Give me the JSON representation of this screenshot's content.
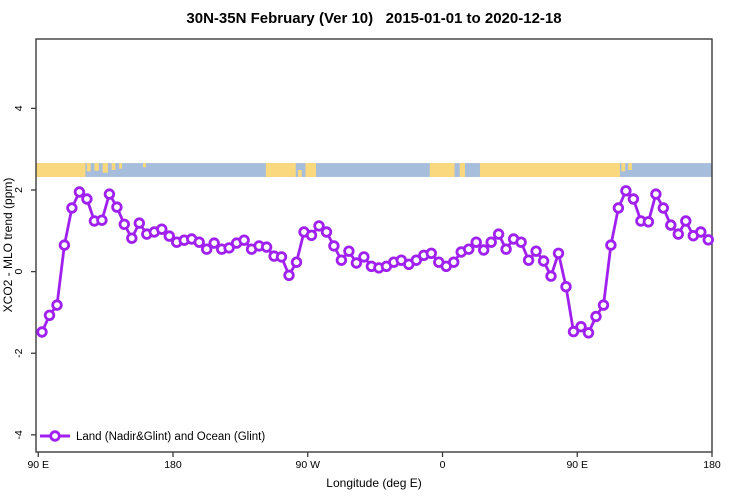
{
  "chart_data": {
    "type": "line",
    "title": "30N-35N February (Ver 10)   2015-01-01 to 2020-12-18",
    "xlabel": "Longitude (deg E)",
    "ylabel": "XCO2 - MLO trend (ppm)",
    "legend_label": "Land (Nadir&Glint) and Ocean (Glint)",
    "legend_position": "bottom-left",
    "grid": false,
    "xlim": [
      88.5,
      540
    ],
    "ylim": [
      -4.42,
      5.7
    ],
    "x_ticks": [
      {
        "lon": 90,
        "label": "90 E"
      },
      {
        "lon": 180,
        "label": "180"
      },
      {
        "lon": 270,
        "label": "90 W"
      },
      {
        "lon": 360,
        "label": "0"
      },
      {
        "lon": 450,
        "label": "90 E"
      },
      {
        "lon": 540,
        "label": "180"
      }
    ],
    "y_ticks": [
      {
        "value": -4,
        "label": "-4"
      },
      {
        "value": -2,
        "label": "-2"
      },
      {
        "value": 0,
        "label": "0"
      },
      {
        "value": 2,
        "label": "2"
      },
      {
        "value": 4,
        "label": "4"
      }
    ],
    "series": [
      {
        "name": "Land (Nadir&Glint) and Ocean (Glint)",
        "color": "#A020F0",
        "marker": "open-circle",
        "points": [
          [
            92.5,
            -1.48
          ],
          [
            97.5,
            -1.07
          ],
          [
            102.5,
            -0.82
          ],
          [
            107.5,
            0.65
          ],
          [
            112.5,
            1.56
          ],
          [
            117.5,
            1.95
          ],
          [
            122.5,
            1.78
          ],
          [
            127.5,
            1.24
          ],
          [
            132.5,
            1.26
          ],
          [
            137.5,
            1.9
          ],
          [
            142.5,
            1.58
          ],
          [
            147.5,
            1.16
          ],
          [
            152.5,
            0.82
          ],
          [
            157.5,
            1.19
          ],
          [
            162.5,
            0.92
          ],
          [
            167.5,
            0.97
          ],
          [
            172.5,
            1.04
          ],
          [
            177.5,
            0.87
          ],
          [
            182.5,
            0.72
          ],
          [
            187.5,
            0.77
          ],
          [
            192.5,
            0.8
          ],
          [
            197.5,
            0.72
          ],
          [
            202.5,
            0.55
          ],
          [
            207.5,
            0.7
          ],
          [
            212.5,
            0.55
          ],
          [
            217.5,
            0.58
          ],
          [
            222.5,
            0.7
          ],
          [
            227.5,
            0.77
          ],
          [
            232.5,
            0.55
          ],
          [
            237.5,
            0.63
          ],
          [
            242.5,
            0.6
          ],
          [
            247.5,
            0.38
          ],
          [
            252.5,
            0.36
          ],
          [
            257.5,
            -0.09
          ],
          [
            262.5,
            0.23
          ],
          [
            267.5,
            0.97
          ],
          [
            272.5,
            0.89
          ],
          [
            277.5,
            1.12
          ],
          [
            282.5,
            0.97
          ],
          [
            287.5,
            0.63
          ],
          [
            292.5,
            0.28
          ],
          [
            297.5,
            0.5
          ],
          [
            302.5,
            0.21
          ],
          [
            307.5,
            0.36
          ],
          [
            312.5,
            0.13
          ],
          [
            317.5,
            0.09
          ],
          [
            322.5,
            0.13
          ],
          [
            327.5,
            0.23
          ],
          [
            332.5,
            0.28
          ],
          [
            337.5,
            0.18
          ],
          [
            342.5,
            0.28
          ],
          [
            347.5,
            0.4
          ],
          [
            352.5,
            0.45
          ],
          [
            357.5,
            0.23
          ],
          [
            362.5,
            0.13
          ],
          [
            367.5,
            0.23
          ],
          [
            372.5,
            0.48
          ],
          [
            377.5,
            0.55
          ],
          [
            382.5,
            0.72
          ],
          [
            387.5,
            0.53
          ],
          [
            392.5,
            0.72
          ],
          [
            397.5,
            0.92
          ],
          [
            402.5,
            0.55
          ],
          [
            407.5,
            0.8
          ],
          [
            412.5,
            0.72
          ],
          [
            417.5,
            0.28
          ],
          [
            422.5,
            0.5
          ],
          [
            427.5,
            0.26
          ],
          [
            432.5,
            -0.11
          ],
          [
            437.5,
            0.45
          ],
          [
            442.5,
            -0.37
          ],
          [
            447.5,
            -1.47
          ],
          [
            452.5,
            -1.35
          ],
          [
            457.5,
            -1.5
          ],
          [
            462.5,
            -1.1
          ],
          [
            467.5,
            -0.82
          ],
          [
            472.5,
            0.65
          ],
          [
            477.5,
            1.56
          ],
          [
            482.5,
            1.98
          ],
          [
            487.5,
            1.78
          ],
          [
            492.5,
            1.24
          ],
          [
            497.5,
            1.22
          ],
          [
            502.5,
            1.9
          ],
          [
            507.5,
            1.56
          ],
          [
            512.5,
            1.14
          ],
          [
            517.5,
            0.92
          ],
          [
            522.5,
            1.24
          ],
          [
            527.5,
            0.88
          ],
          [
            532.5,
            0.97
          ],
          [
            537.5,
            0.78
          ]
        ]
      }
    ],
    "map_strip": {
      "description": "land-ocean strip along 30N-35N",
      "land_color": "#FAD87E",
      "ocean_color": "#A6BDDB",
      "y_value_range": [
        2.32,
        2.66
      ],
      "ocean_extent": [
        88.5,
        540
      ],
      "land_segments": [
        [
          88.5,
          121.5
        ],
        [
          242,
          262
        ],
        [
          268.5,
          275.5
        ],
        [
          351.5,
          368
        ],
        [
          371.5,
          375
        ],
        [
          385,
          478.5
        ]
      ],
      "land_flecks": [
        {
          "lon": [
            122.5,
            125
          ],
          "frac": 0.6,
          "align": "top"
        },
        {
          "lon": [
            127.5,
            130.5
          ],
          "frac": 0.55,
          "align": "top"
        },
        {
          "lon": [
            133,
            136.5
          ],
          "frac": 0.7,
          "align": "top"
        },
        {
          "lon": [
            139,
            141.5
          ],
          "frac": 0.5,
          "align": "top"
        },
        {
          "lon": [
            144,
            146
          ],
          "frac": 0.4,
          "align": "top"
        },
        {
          "lon": [
            160,
            162
          ],
          "frac": 0.3,
          "align": "top"
        },
        {
          "lon": [
            263.5,
            266
          ],
          "frac": 0.5,
          "align": "bottom"
        },
        {
          "lon": [
            479.5,
            482
          ],
          "frac": 0.6,
          "align": "top"
        },
        {
          "lon": [
            484,
            486.5
          ],
          "frac": 0.5,
          "align": "top"
        }
      ]
    },
    "colors": {
      "series": "#A020F0",
      "axis": "#3C3C3C",
      "background": "#FFFFFF",
      "land": "#FAD87E",
      "ocean": "#A6BDDB"
    }
  }
}
